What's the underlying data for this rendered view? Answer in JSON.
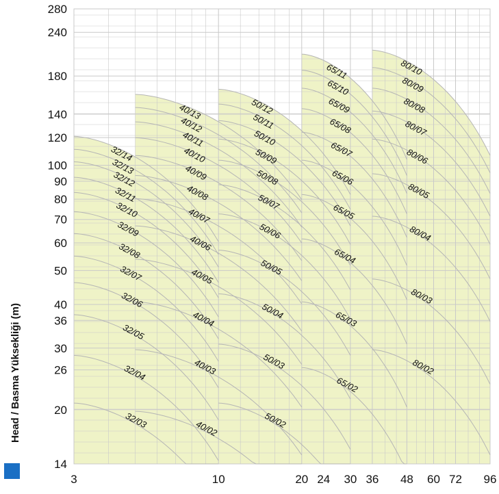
{
  "chart_data": {
    "type": "area",
    "ylabel": "Head / Basma Yüksekliği (m)",
    "xlabel": "",
    "x_scale": "log",
    "y_scale": "log",
    "xlim": [
      3,
      96
    ],
    "ylim": [
      14,
      280
    ],
    "x_ticks": [
      3,
      10,
      20,
      24,
      30,
      36,
      48,
      60,
      72,
      96
    ],
    "y_ticks": [
      14,
      20,
      26,
      30,
      36,
      40,
      50,
      60,
      70,
      80,
      90,
      100,
      120,
      140,
      180,
      240,
      280
    ],
    "grid": true,
    "colors": {
      "fill": "#eff3c7",
      "grid": "#c9c9c9",
      "curve": "#b5b5b5",
      "marker": "#1a6fc4"
    },
    "families": [
      {
        "name": "32",
        "q_range": [
          3,
          10
        ],
        "models": [
          {
            "label": "32/03",
            "head": 19
          },
          {
            "label": "32/04",
            "head": 26
          },
          {
            "label": "32/05",
            "head": 34
          },
          {
            "label": "32/06",
            "head": 42
          },
          {
            "label": "32/07",
            "head": 50
          },
          {
            "label": "32/08",
            "head": 58
          },
          {
            "label": "32/09",
            "head": 67
          },
          {
            "label": "32/10",
            "head": 76
          },
          {
            "label": "32/11",
            "head": 84
          },
          {
            "label": "32/12",
            "head": 93
          },
          {
            "label": "32/13",
            "head": 101
          },
          {
            "label": "32/14",
            "head": 110
          }
        ]
      },
      {
        "name": "40",
        "q_range": [
          5,
          20
        ],
        "models": [
          {
            "label": "40/02",
            "head": 18
          },
          {
            "label": "40/03",
            "head": 27
          },
          {
            "label": "40/04",
            "head": 37
          },
          {
            "label": "40/05",
            "head": 49
          },
          {
            "label": "40/06",
            "head": 61
          },
          {
            "label": "40/07",
            "head": 73
          },
          {
            "label": "40/08",
            "head": 85
          },
          {
            "label": "40/09",
            "head": 97
          },
          {
            "label": "40/10",
            "head": 109
          },
          {
            "label": "40/11",
            "head": 121
          },
          {
            "label": "40/12",
            "head": 133
          },
          {
            "label": "40/13",
            "head": 145
          }
        ]
      },
      {
        "name": "50",
        "q_range": [
          10,
          30
        ],
        "models": [
          {
            "label": "50/02",
            "head": 19
          },
          {
            "label": "50/03",
            "head": 28
          },
          {
            "label": "50/04",
            "head": 39
          },
          {
            "label": "50/05",
            "head": 52
          },
          {
            "label": "50/06",
            "head": 66
          },
          {
            "label": "50/07",
            "head": 80
          },
          {
            "label": "50/08",
            "head": 94
          },
          {
            "label": "50/09",
            "head": 108
          },
          {
            "label": "50/10",
            "head": 122
          },
          {
            "label": "50/11",
            "head": 136
          },
          {
            "label": "50/12",
            "head": 150
          }
        ]
      },
      {
        "name": "65",
        "q_range": [
          20,
          48
        ],
        "models": [
          {
            "label": "65/02",
            "head": 24
          },
          {
            "label": "65/03",
            "head": 37
          },
          {
            "label": "65/04",
            "head": 56
          },
          {
            "label": "65/05",
            "head": 75
          },
          {
            "label": "65/06",
            "head": 94
          },
          {
            "label": "65/07",
            "head": 113
          },
          {
            "label": "65/08",
            "head": 132
          },
          {
            "label": "65/09",
            "head": 151
          },
          {
            "label": "65/10",
            "head": 170
          },
          {
            "label": "65/11",
            "head": 189
          }
        ]
      },
      {
        "name": "80",
        "q_range": [
          36,
          96
        ],
        "models": [
          {
            "label": "80/02",
            "head": 27
          },
          {
            "label": "80/03",
            "head": 43
          },
          {
            "label": "80/04",
            "head": 65
          },
          {
            "label": "80/05",
            "head": 86
          },
          {
            "label": "80/06",
            "head": 108
          },
          {
            "label": "80/07",
            "head": 130
          },
          {
            "label": "80/08",
            "head": 151
          },
          {
            "label": "80/09",
            "head": 173
          },
          {
            "label": "80/10",
            "head": 194
          }
        ]
      }
    ]
  }
}
